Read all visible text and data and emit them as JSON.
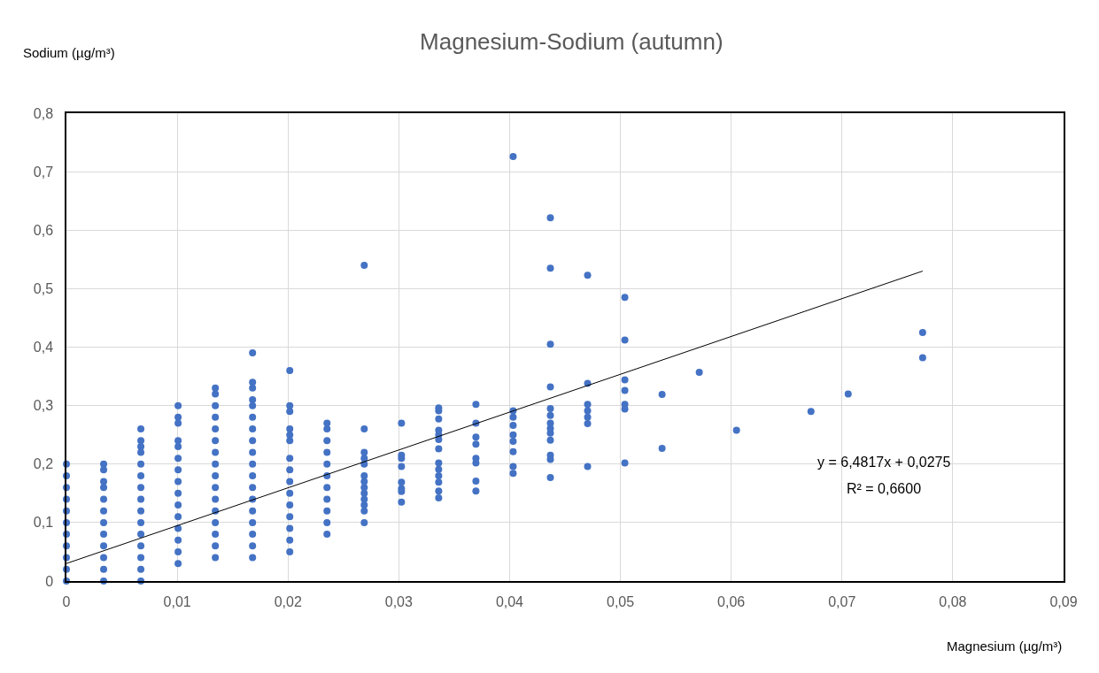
{
  "chart_data": {
    "type": "scatter",
    "title": "Magnesium-Sodium (autumn)",
    "xlabel": "Magnesium (µg/m³)",
    "ylabel": "Sodium (µg/m³)",
    "xlim": [
      0,
      0.09
    ],
    "ylim": [
      0,
      0.8
    ],
    "xticks": [
      0,
      {
        "value": 0.01,
        "label": "0,01"
      },
      {
        "value": 0.02,
        "label": "0,02"
      },
      {
        "value": 0.03,
        "label": "0,03"
      },
      {
        "value": 0.04,
        "label": "0,04"
      },
      {
        "value": 0.05,
        "label": "0,05"
      },
      {
        "value": 0.06,
        "label": "0,06"
      },
      {
        "value": 0.07,
        "label": "0,07"
      },
      {
        "value": 0.08,
        "label": "0,08"
      },
      {
        "value": 0.09,
        "label": "0,09"
      }
    ],
    "yticks": [
      0,
      {
        "value": 0.1,
        "label": "0,1"
      },
      {
        "value": 0.2,
        "label": "0,2"
      },
      {
        "value": 0.3,
        "label": "0,3"
      },
      {
        "value": 0.4,
        "label": "0,4"
      },
      {
        "value": 0.5,
        "label": "0,5"
      },
      {
        "value": 0.6,
        "label": "0,6"
      },
      {
        "value": 0.7,
        "label": "0,7"
      },
      {
        "value": 0.8,
        "label": "0,8"
      }
    ],
    "grid": true,
    "marker": "circle",
    "annotations": [
      "y = 6,4817x + 0,0275",
      "R² = 0,6600"
    ],
    "series": [
      {
        "color": "#4472c4",
        "x": [
          0,
          0,
          0,
          0,
          0,
          0,
          0,
          0,
          0,
          0,
          0,
          0.00336,
          0.00336,
          0.00336,
          0.00336,
          0.00336,
          0.00336,
          0.00336,
          0.00336,
          0.00336,
          0.00336,
          0.00336,
          0.00336,
          0.00672,
          0.00672,
          0.00672,
          0.00672,
          0.00672,
          0.00672,
          0.00672,
          0.00672,
          0.00672,
          0.00672,
          0.00672,
          0.00672,
          0.00672,
          0.00672,
          0.00672,
          0.01008,
          0.01008,
          0.01008,
          0.01008,
          0.01008,
          0.01008,
          0.01008,
          0.01008,
          0.01008,
          0.01008,
          0.01008,
          0.01008,
          0.01008,
          0.01008,
          0.01008,
          0.01344,
          0.01344,
          0.01344,
          0.01344,
          0.01344,
          0.01344,
          0.01344,
          0.01344,
          0.01344,
          0.01344,
          0.01344,
          0.01344,
          0.01344,
          0.01344,
          0.01344,
          0.01344,
          0.0168,
          0.0168,
          0.0168,
          0.0168,
          0.0168,
          0.0168,
          0.0168,
          0.0168,
          0.0168,
          0.0168,
          0.0168,
          0.0168,
          0.0168,
          0.0168,
          0.0168,
          0.0168,
          0.0168,
          0.0168,
          0.02016,
          0.02016,
          0.02016,
          0.02016,
          0.02016,
          0.02016,
          0.02016,
          0.02016,
          0.02016,
          0.02016,
          0.02016,
          0.02016,
          0.02016,
          0.02016,
          0.02016,
          0.02352,
          0.02352,
          0.02352,
          0.02352,
          0.02352,
          0.02352,
          0.02352,
          0.02352,
          0.02352,
          0.02352,
          0.02352,
          0.02688,
          0.02688,
          0.02688,
          0.02688,
          0.02688,
          0.02688,
          0.02688,
          0.02688,
          0.02688,
          0.02688,
          0.02688,
          0.02688,
          0.02688,
          0.03024,
          0.03024,
          0.03024,
          0.03024,
          0.03024,
          0.03024,
          0.03024,
          0.03024,
          0.0336,
          0.0336,
          0.0336,
          0.0336,
          0.0336,
          0.0336,
          0.0336,
          0.0336,
          0.0336,
          0.0336,
          0.0336,
          0.0336,
          0.0336,
          0.03696,
          0.03696,
          0.03696,
          0.03696,
          0.03696,
          0.03696,
          0.03696,
          0.03696,
          0.04032,
          0.04032,
          0.04032,
          0.04032,
          0.04032,
          0.04032,
          0.04032,
          0.04032,
          0.04032,
          0.04368,
          0.04368,
          0.04368,
          0.04368,
          0.04368,
          0.04368,
          0.04368,
          0.04368,
          0.04368,
          0.04368,
          0.04368,
          0.04368,
          0.04368,
          0.04704,
          0.04704,
          0.04704,
          0.04704,
          0.04704,
          0.04704,
          0.04704,
          0.0504,
          0.0504,
          0.0504,
          0.0504,
          0.0504,
          0.0504,
          0.0504,
          0.05376,
          0.05376,
          0.05712,
          0.06048,
          0.0672,
          0.07056,
          0.07728,
          0.07728
        ],
        "values": [
          0,
          0.02,
          0.04,
          0.06,
          0.08,
          0.1,
          0.12,
          0.14,
          0.16,
          0.18,
          0.2,
          0,
          0.02,
          0.04,
          0.06,
          0.08,
          0.1,
          0.12,
          0.14,
          0.16,
          0.17,
          0.19,
          0.2,
          0,
          0.02,
          0.04,
          0.06,
          0.08,
          0.1,
          0.12,
          0.14,
          0.16,
          0.18,
          0.2,
          0.22,
          0.23,
          0.24,
          0.26,
          0.03,
          0.05,
          0.07,
          0.09,
          0.11,
          0.13,
          0.15,
          0.17,
          0.19,
          0.21,
          0.23,
          0.24,
          0.27,
          0.28,
          0.3,
          0.04,
          0.06,
          0.08,
          0.1,
          0.12,
          0.14,
          0.16,
          0.18,
          0.2,
          0.22,
          0.24,
          0.26,
          0.28,
          0.3,
          0.32,
          0.33,
          0.04,
          0.06,
          0.08,
          0.1,
          0.12,
          0.14,
          0.16,
          0.18,
          0.2,
          0.22,
          0.24,
          0.26,
          0.28,
          0.3,
          0.31,
          0.33,
          0.34,
          0.39,
          0.05,
          0.07,
          0.09,
          0.11,
          0.13,
          0.15,
          0.17,
          0.19,
          0.21,
          0.24,
          0.25,
          0.26,
          0.29,
          0.3,
          0.36,
          0.08,
          0.1,
          0.12,
          0.14,
          0.16,
          0.18,
          0.2,
          0.22,
          0.24,
          0.26,
          0.27,
          0.1,
          0.12,
          0.13,
          0.14,
          0.15,
          0.16,
          0.17,
          0.18,
          0.2,
          0.21,
          0.22,
          0.26,
          0.54,
          0.135,
          0.153,
          0.158,
          0.169,
          0.196,
          0.21,
          0.215,
          0.27,
          0.142,
          0.154,
          0.169,
          0.18,
          0.191,
          0.202,
          0.226,
          0.242,
          0.25,
          0.258,
          0.277,
          0.291,
          0.296,
          0.154,
          0.171,
          0.202,
          0.21,
          0.234,
          0.246,
          0.27,
          0.302,
          0.184,
          0.196,
          0.221,
          0.239,
          0.25,
          0.266,
          0.28,
          0.291,
          0.726,
          0.177,
          0.208,
          0.215,
          0.241,
          0.253,
          0.261,
          0.27,
          0.283,
          0.295,
          0.332,
          0.405,
          0.535,
          0.621,
          0.196,
          0.269,
          0.28,
          0.291,
          0.302,
          0.338,
          0.523,
          0.202,
          0.294,
          0.302,
          0.326,
          0.344,
          0.412,
          0.485,
          0.227,
          0.319,
          0.357,
          0.258,
          0.29,
          0.32,
          0.382,
          0.425
        ]
      },
      {
        "type": "line",
        "color": "#000000",
        "marker": "none",
        "line_style": "solid",
        "x": [
          0,
          0.07728
        ],
        "values": [
          0.03,
          0.53
        ]
      }
    ]
  }
}
